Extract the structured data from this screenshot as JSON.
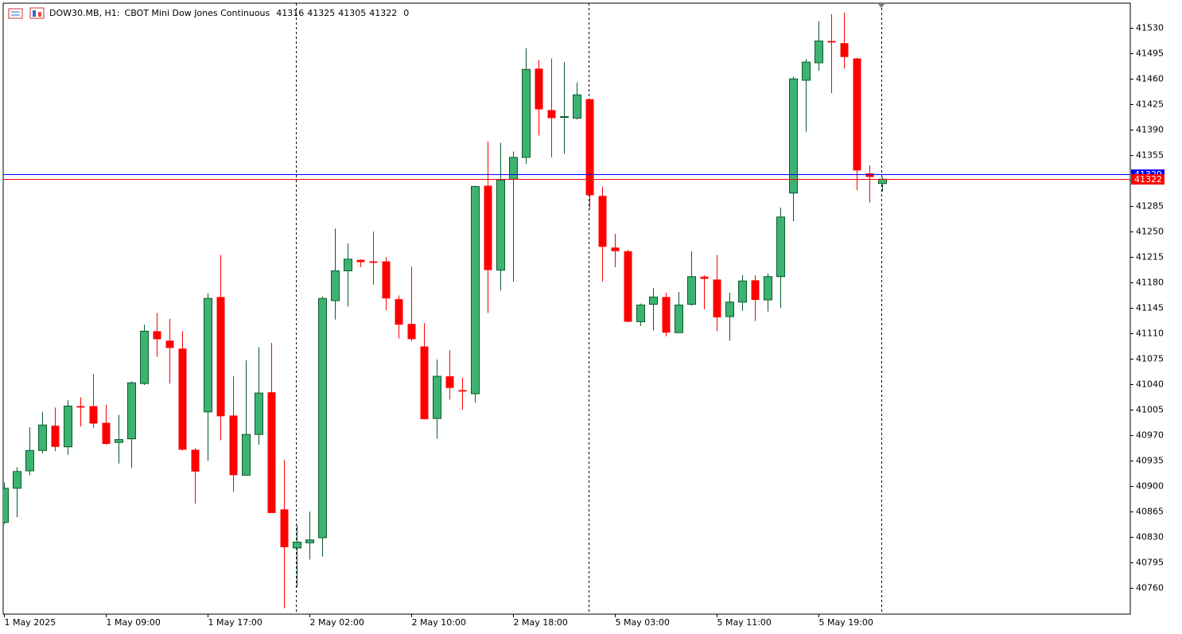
{
  "chart_data": {
    "type": "candlestick",
    "title": "DOW30.MB, H1:",
    "description": "CBOT Mini Dow Jones Continuous",
    "spread": 0,
    "categories": [
      "1 May 2025",
      null,
      null,
      null,
      null,
      null,
      null,
      null,
      "1 May 09:00",
      null,
      null,
      null,
      null,
      null,
      null,
      null,
      "1 May 17:00",
      null,
      null,
      null,
      null,
      null,
      null,
      null,
      "2 May 02:00",
      null,
      null,
      null,
      null,
      null,
      null,
      null,
      "2 May 10:00",
      null,
      null,
      null,
      null,
      null,
      null,
      null,
      "2 May 18:00",
      null,
      null,
      null,
      null,
      null,
      null,
      null,
      "5 May 03:00",
      null,
      null,
      null,
      null,
      null,
      null,
      null,
      "5 May 11:00",
      null,
      null,
      null,
      null,
      null,
      null,
      null,
      "5 May 19:00",
      null,
      null,
      null,
      null,
      null
    ],
    "open": [
      40850,
      40897,
      40921,
      40949,
      40983,
      40954,
      41010,
      41010,
      40987,
      40960,
      40965,
      41041,
      41113,
      41100,
      41089,
      40950,
      41002,
      41160,
      40997,
      40915,
      40971,
      41029,
      40868,
      40815,
      40822,
      40829,
      41155,
      41196,
      41211,
      41209,
      41209,
      41157,
      41123,
      41092,
      40993,
      41051,
      41032,
      41027,
      41313,
      41197,
      41322,
      41352,
      41474,
      41417,
      41407,
      41406,
      41432,
      41299,
      41228,
      41223,
      41126,
      41150,
      41160,
      41111,
      41150,
      41188,
      41184,
      41133,
      41153,
      41183,
      41156,
      41188,
      41303,
      41458,
      41482,
      41512,
      41509,
      41488,
      41330,
      41316
    ],
    "high": [
      40905,
      40926,
      40981,
      41002,
      41008,
      41018,
      41022,
      41054,
      41012,
      40998,
      41044,
      41122,
      41138,
      41130,
      41113,
      40952,
      41165,
      41218,
      41051,
      41073,
      41091,
      41097,
      40936,
      40846,
      40865,
      41161,
      41254,
      41234,
      41212,
      41250,
      41215,
      41162,
      41202,
      41124,
      41074,
      41087,
      41049,
      41313,
      41374,
      41372,
      41360,
      41502,
      41486,
      41488,
      41483,
      41455,
      41432,
      41312,
      41247,
      41225,
      41151,
      41172,
      41166,
      41167,
      41223,
      41190,
      41218,
      41166,
      41190,
      41190,
      41192,
      41283,
      41463,
      41487,
      41539,
      41549,
      41551,
      41489,
      41341,
      41325
    ],
    "low": [
      40848,
      40857,
      40915,
      40945,
      40948,
      40943,
      40982,
      40980,
      40957,
      40931,
      40925,
      41039,
      41078,
      41041,
      40949,
      40876,
      40935,
      40963,
      40892,
      40914,
      40957,
      40863,
      40732,
      40761,
      40799,
      40803,
      41129,
      41147,
      41201,
      41177,
      41142,
      41103,
      41099,
      40992,
      40965,
      41019,
      41005,
      41015,
      41138,
      41169,
      41181,
      41343,
      41382,
      41352,
      41357,
      41404,
      41281,
      41181,
      41201,
      41125,
      41120,
      41114,
      41106,
      41111,
      41148,
      41143,
      41113,
      41100,
      41141,
      41127,
      41140,
      41145,
      41264,
      41387,
      41471,
      41440,
      41474,
      41307,
      41290,
      41305
    ],
    "close": [
      40897,
      40920,
      40949,
      40984,
      40954,
      41010,
      41008,
      40986,
      40958,
      40964,
      41042,
      41113,
      41102,
      41090,
      40950,
      40920,
      41158,
      40996,
      40915,
      40971,
      41028,
      40863,
      40816,
      40823,
      40826,
      41158,
      41196,
      41212,
      41208,
      41207,
      41158,
      41122,
      41102,
      40992,
      41051,
      41035,
      41030,
      41312,
      41197,
      41321,
      41352,
      41473,
      41418,
      41406,
      41408,
      41438,
      41300,
      41229,
      41223,
      41126,
      41149,
      41160,
      41111,
      41149,
      41188,
      41185,
      41132,
      41153,
      41182,
      41156,
      41188,
      41270,
      41460,
      41483,
      41512,
      41510,
      41490,
      41334,
      41325,
      41322
    ],
    "up_color": "#3cb371",
    "up_edge": "#0b5a2c",
    "down_color": "#ff0000",
    "ylim": [
      40724,
      41564
    ],
    "yticks": [
      41530,
      41495,
      41460,
      41425,
      41390,
      41355,
      41320,
      41285,
      41250,
      41215,
      41180,
      41145,
      41110,
      41075,
      41040,
      41005,
      40970,
      40935,
      40900,
      40865,
      40830,
      40795,
      40760
    ],
    "price_lines": [
      {
        "value": 41329,
        "color": "#0000ff"
      },
      {
        "value": 41322,
        "color": "#ff0000"
      }
    ]
  }
}
